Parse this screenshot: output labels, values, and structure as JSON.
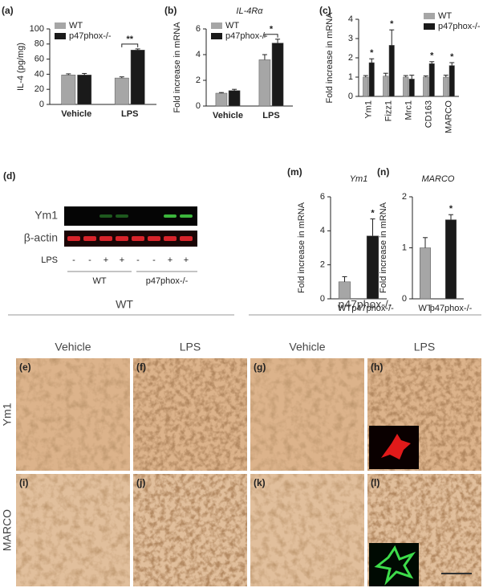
{
  "chart_data": [
    {
      "type": "bar",
      "panel": "(a)",
      "ylabel": "IL-4 (pg/mg)",
      "categories": [
        "Vehicle",
        "LPS"
      ],
      "series": [
        {
          "name": "WT",
          "color": "#a6a6a6",
          "values": [
            39,
            35
          ],
          "errors": [
            1.5,
            1.5
          ]
        },
        {
          "name": "p47phox-/-",
          "color": "#1a1a1a",
          "values": [
            39,
            72
          ],
          "errors": [
            2,
            1.5
          ]
        }
      ],
      "significance": [
        null,
        "**"
      ],
      "legend": "upper left",
      "ylim": [
        0,
        100
      ],
      "yticks": [
        0,
        20,
        40,
        60,
        80,
        100
      ]
    },
    {
      "type": "bar",
      "panel": "(b)",
      "title": "IL-4Rα",
      "ylabel": "Fold increase in mRNA",
      "categories": [
        "Vehicle",
        "LPS"
      ],
      "series": [
        {
          "name": "WT",
          "color": "#a6a6a6",
          "values": [
            1.0,
            3.6
          ],
          "errors": [
            0.05,
            0.4
          ]
        },
        {
          "name": "p47phox-/-",
          "color": "#1a1a1a",
          "values": [
            1.2,
            4.9
          ],
          "errors": [
            0.1,
            0.3
          ]
        }
      ],
      "significance": [
        null,
        "*"
      ],
      "legend": "upper left",
      "ylim": [
        0,
        6
      ],
      "yticks": [
        0,
        2,
        4,
        6
      ]
    },
    {
      "type": "bar",
      "panel": "(c)",
      "ylabel": "Fold increase in mRNA",
      "categories": [
        "Ym1",
        "Fizz1",
        "Mrc1",
        "CD163",
        "MARCO"
      ],
      "series": [
        {
          "name": "WT",
          "color": "#a6a6a6",
          "values": [
            1,
            1.05,
            1,
            1,
            1
          ],
          "errors": [
            0.08,
            0.15,
            0.08,
            0.06,
            0.1
          ]
        },
        {
          "name": "p47phox-/-",
          "color": "#1a1a1a",
          "values": [
            1.75,
            2.65,
            0.9,
            1.7,
            1.6
          ],
          "errors": [
            0.2,
            0.8,
            0.2,
            0.1,
            0.15
          ]
        }
      ],
      "significance": [
        "*",
        "*",
        null,
        "*",
        "*"
      ],
      "legend": "upper right",
      "ylim": [
        0,
        4
      ],
      "yticks": [
        0,
        1,
        2,
        3,
        4
      ]
    },
    {
      "type": "bar",
      "panel": "(m)",
      "title": "Ym1",
      "ylabel": "Fold increase in mRNA",
      "categories": [
        "WT",
        "p47phox-/-"
      ],
      "values": [
        1,
        3.7
      ],
      "errors": [
        0.3,
        1.0
      ],
      "colors": [
        "#a6a6a6",
        "#1a1a1a"
      ],
      "significance": [
        null,
        "*"
      ],
      "ylim": [
        0,
        6
      ],
      "yticks": [
        0,
        2,
        4,
        6
      ]
    },
    {
      "type": "bar",
      "panel": "(n)",
      "title": "MARCO",
      "ylabel": "Fold increase in mRNA",
      "categories": [
        "WT",
        "p47phox-/-"
      ],
      "values": [
        1.0,
        1.55
      ],
      "errors": [
        0.2,
        0.1
      ],
      "colors": [
        "#a6a6a6",
        "#1a1a1a"
      ],
      "significance": [
        null,
        "*"
      ],
      "ylim": [
        0,
        2
      ],
      "yticks": [
        0,
        1,
        2
      ]
    }
  ],
  "blot": {
    "panel": "(d)",
    "rows": [
      "Ym1",
      "β-actin"
    ],
    "treatment_label": "LPS",
    "lanes": [
      "-",
      "-",
      "+",
      "+",
      "-",
      "-",
      "+",
      "+"
    ],
    "groups": [
      "WT",
      "p47phox-/-"
    ]
  },
  "histology": {
    "groups": [
      "WT",
      "p47phox-/-"
    ],
    "conditions": [
      "Vehicle",
      "LPS",
      "Vehicle",
      "LPS"
    ],
    "rows": [
      "Ym1",
      "MARCO"
    ],
    "panels": [
      [
        "(e)",
        "(f)",
        "(g)",
        "(h)"
      ],
      [
        "(i)",
        "(j)",
        "(k)",
        "(l)"
      ]
    ]
  }
}
